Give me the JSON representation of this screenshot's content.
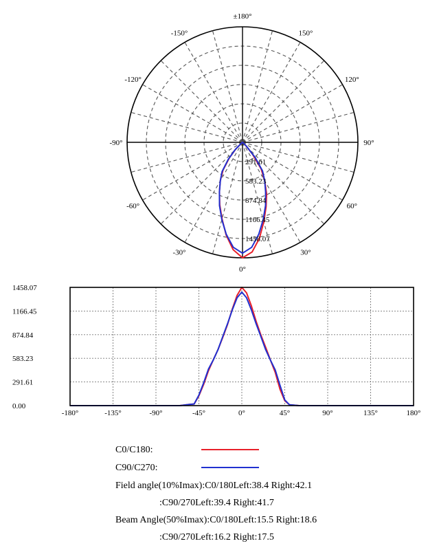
{
  "chart_data": [
    {
      "type": "polar",
      "angle_labels": [
        "±180°",
        "150°",
        "120°",
        "90°",
        "60°",
        "30°",
        "0°",
        "-30°",
        "-60°",
        "-90°",
        "-120°",
        "-150°"
      ],
      "radial_labels": [
        "291.61",
        "583.23",
        "874.84",
        "1166.45",
        "1458.07"
      ],
      "rmax": 1458.07,
      "grid": true,
      "series": [
        {
          "name": "C0/C180",
          "color": "#e8202a",
          "angles": [
            -60,
            -50,
            -45,
            -40,
            -35,
            -30,
            -25,
            -20,
            -15,
            -10,
            -5,
            0,
            5,
            10,
            15,
            20,
            25,
            30,
            35,
            40,
            45,
            50,
            60
          ],
          "values": [
            0,
            20,
            120,
            260,
            430,
            560,
            690,
            840,
            1000,
            1190,
            1360,
            1458,
            1390,
            1230,
            1040,
            870,
            720,
            560,
            410,
            200,
            60,
            10,
            0
          ]
        },
        {
          "name": "C90/C270",
          "color": "#2030d0",
          "angles": [
            -60,
            -50,
            -45,
            -40,
            -35,
            -30,
            -25,
            -20,
            -15,
            -10,
            -5,
            0,
            5,
            10,
            15,
            20,
            25,
            30,
            35,
            40,
            45,
            50,
            60
          ],
          "values": [
            0,
            20,
            130,
            280,
            450,
            560,
            690,
            850,
            1010,
            1180,
            1330,
            1400,
            1330,
            1180,
            1010,
            850,
            690,
            560,
            440,
            250,
            70,
            10,
            0
          ]
        }
      ]
    },
    {
      "type": "line",
      "x_ticks": [
        "-180°",
        "-135°",
        "-90°",
        "-45°",
        "0°",
        "45°",
        "90°",
        "135°",
        "180°"
      ],
      "y_ticks": [
        "0.00",
        "291.61",
        "583.23",
        "874.84",
        "1166.45",
        "1458.07"
      ],
      "xlim": [
        -180,
        180
      ],
      "ylim": [
        0,
        1458.07
      ],
      "grid": true,
      "series": [
        {
          "name": "C0/C180",
          "color": "#e8202a",
          "x": [
            -180,
            -65,
            -55,
            -50,
            -45,
            -40,
            -35,
            -30,
            -25,
            -20,
            -15,
            -10,
            -5,
            0,
            5,
            10,
            15,
            20,
            25,
            30,
            35,
            40,
            45,
            50,
            60,
            180
          ],
          "y": [
            0,
            0,
            15,
            20,
            120,
            260,
            430,
            560,
            690,
            840,
            1000,
            1190,
            1360,
            1458,
            1390,
            1230,
            1040,
            870,
            720,
            560,
            410,
            200,
            60,
            10,
            0,
            0
          ]
        },
        {
          "name": "C90/C270",
          "color": "#2030d0",
          "x": [
            -180,
            -65,
            -55,
            -50,
            -45,
            -40,
            -35,
            -30,
            -25,
            -20,
            -15,
            -10,
            -5,
            0,
            5,
            10,
            15,
            20,
            25,
            30,
            35,
            40,
            45,
            50,
            60,
            180
          ],
          "y": [
            0,
            0,
            15,
            20,
            130,
            280,
            450,
            560,
            690,
            850,
            1010,
            1180,
            1330,
            1400,
            1330,
            1180,
            1010,
            850,
            690,
            560,
            440,
            250,
            70,
            10,
            0,
            0
          ]
        }
      ]
    }
  ],
  "legend": {
    "c0_label": "C0/C180:",
    "c90_label": "C90/C270:",
    "c0_color": "#e8202a",
    "c90_color": "#2030d0"
  },
  "info": {
    "field_line1": "Field angle(10%Imax):C0/180Left:38.4 Right:42.1",
    "field_line2": ":C90/270Left:39.4 Right:41.7",
    "beam_line1": "Beam Angle(50%Imax):C0/180Left:15.5 Right:18.6",
    "beam_line2": ":C90/270Left:16.2 Right:17.5"
  }
}
